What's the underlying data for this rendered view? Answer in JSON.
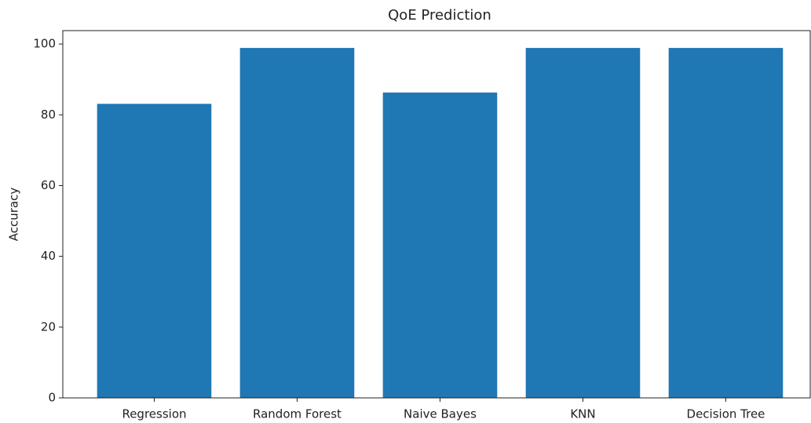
{
  "chart_data": {
    "type": "bar",
    "title": "QoE Prediction",
    "y_label": "Accuracy",
    "categories": [
      "Regression",
      "Random Forest",
      "Naive Bayes",
      "KNN",
      "Decision Tree"
    ],
    "values": [
      83.1,
      98.9,
      86.3,
      98.9,
      98.9
    ],
    "color": "#1f77b4",
    "ylim": [
      0,
      103.8
    ],
    "yticks": [
      0,
      20,
      40,
      60,
      80,
      100
    ],
    "grid": false
  }
}
